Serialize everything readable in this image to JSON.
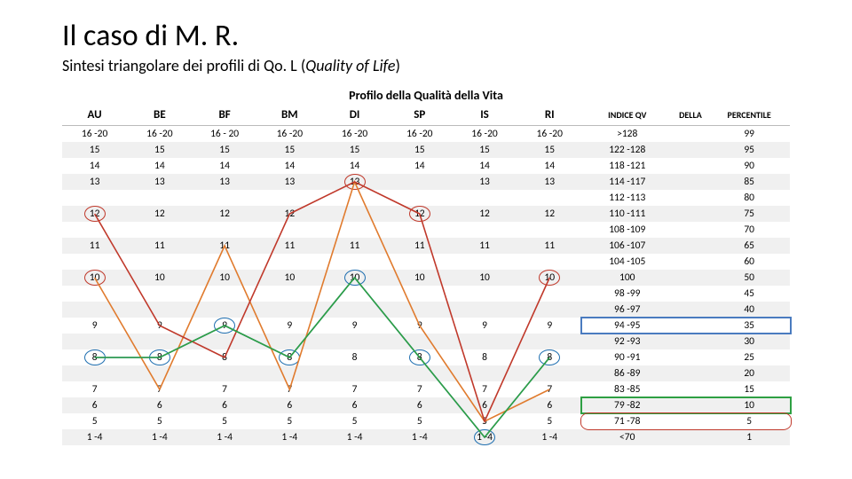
{
  "title": "Il caso di M. R.",
  "subtitle_pre": "Sintesi triangolare dei profili di Qo. L (",
  "subtitle_ital": "Quality of Life",
  "subtitle_post": ")",
  "chart_title": "Profilo della Qualità della Vita",
  "colors": {
    "red": "#c0392b",
    "blue": "#1f6fb0",
    "orange": "#e07b2e",
    "green": "#2ea043"
  },
  "columns_main": [
    "AU",
    "BE",
    "BF",
    "BM",
    "DI",
    "SP",
    "IS",
    "RI"
  ],
  "columns_extra": [
    "INDICE QV",
    "DELLA",
    "PERCENTILE"
  ],
  "row_labels": [
    "16 -20",
    "15",
    "14",
    "13",
    "12",
    "11",
    "10",
    "9",
    "8",
    "7",
    "6",
    "5",
    "1 -4"
  ],
  "grid": [
    [
      "16 -20",
      "16 -20",
      "16 - 20",
      "16 -20",
      "16 -20",
      "16 -20",
      "16 -20",
      "16 -20"
    ],
    [
      "15",
      "15",
      "15",
      "15",
      "15",
      "15",
      "15",
      "15"
    ],
    [
      "14",
      "14",
      "14",
      "14",
      "14",
      "14",
      "14",
      "14"
    ],
    [
      "13",
      "13",
      "13",
      "13",
      "13",
      null,
      "13",
      "13"
    ],
    [
      "12",
      "12",
      "12",
      "12",
      null,
      "12",
      "12",
      "12"
    ],
    [
      "11",
      "11",
      "11",
      "11",
      "11",
      "11",
      "11",
      "11"
    ],
    [
      "10",
      "10",
      "10",
      "10",
      "10",
      "10",
      "10",
      "10"
    ],
    [
      "9",
      "9",
      "9",
      "9",
      "9",
      "9",
      "9",
      "9"
    ],
    [
      "8",
      "8",
      "8",
      "8",
      "8",
      "8",
      "8",
      "8"
    ],
    [
      "7",
      "7",
      "7",
      "7",
      "7",
      "7",
      "7",
      "7"
    ],
    [
      "6",
      "6",
      "6",
      "6",
      "6",
      "6",
      "6",
      "6"
    ],
    [
      "5",
      "5",
      "5",
      "5",
      "5",
      "5",
      "5",
      "5"
    ],
    [
      "1 -4",
      "1 -4",
      "1 -4",
      "1 -4",
      "1 -4",
      "1 -4",
      "1 -4",
      "1 -4"
    ]
  ],
  "idx_rows": [
    [
      ">128",
      "",
      "99"
    ],
    [
      "122 -128",
      "",
      "95"
    ],
    [
      "118 -121",
      "",
      "90"
    ],
    [
      "114 -117",
      "",
      "85"
    ],
    [
      "112 -113",
      "",
      "80"
    ],
    [
      "110 -111",
      "",
      "75"
    ],
    [
      "108 -109",
      "",
      "70"
    ],
    [
      "106 -107",
      "",
      "65"
    ],
    [
      "104 -105",
      "",
      "60"
    ],
    [
      "100",
      "",
      "50"
    ],
    [
      "98 -99",
      "",
      "45"
    ],
    [
      "96 -97",
      "",
      "40"
    ],
    [
      "94 -95",
      "",
      "35"
    ],
    [
      "92 -93",
      "",
      "30"
    ],
    [
      "90 -91",
      "",
      "25"
    ],
    [
      "86 -89",
      "",
      "20"
    ],
    [
      "83 -85",
      "",
      "15"
    ],
    [
      "79 -82",
      "",
      "10"
    ],
    [
      "71 -78",
      "",
      "5"
    ],
    [
      "<70",
      "",
      "1"
    ]
  ],
  "red_circles": [
    [
      4,
      0
    ],
    [
      6,
      0
    ],
    [
      3,
      4
    ],
    [
      4,
      5
    ],
    [
      6,
      7
    ]
  ],
  "blue_circles": [
    [
      8,
      0
    ],
    [
      8,
      1
    ],
    [
      7,
      2
    ],
    [
      8,
      3
    ],
    [
      6,
      4
    ],
    [
      8,
      5
    ],
    [
      12,
      6
    ],
    [
      8,
      7
    ]
  ],
  "series": {
    "blue": {
      "color": "#1f6fb0",
      "width": 1.6,
      "points": [
        [
          0,
          8
        ],
        [
          1,
          8
        ],
        [
          2,
          7
        ],
        [
          3,
          8
        ],
        [
          4,
          6
        ],
        [
          5,
          8
        ],
        [
          6,
          12
        ],
        [
          7,
          8
        ]
      ]
    },
    "orange": {
      "color": "#e07b2e",
      "width": 1.6,
      "points": [
        [
          0,
          6
        ],
        [
          1,
          9
        ],
        [
          2,
          5
        ],
        [
          3,
          9
        ],
        [
          4,
          3
        ],
        [
          5,
          7
        ],
        [
          6,
          11
        ],
        [
          7,
          9
        ]
      ]
    },
    "red": {
      "color": "#c0392b",
      "width": 1.6,
      "points": [
        [
          0,
          4
        ],
        [
          1,
          7
        ],
        [
          2,
          8
        ],
        [
          3,
          4
        ],
        [
          4,
          3
        ],
        [
          5,
          4
        ],
        [
          6,
          11
        ],
        [
          7,
          6
        ]
      ]
    },
    "green": {
      "color": "#2ea043",
      "width": 1.6,
      "points": [
        [
          0,
          8
        ],
        [
          1,
          8
        ],
        [
          2,
          7
        ],
        [
          3,
          8
        ],
        [
          4,
          6
        ],
        [
          5,
          8
        ],
        [
          6,
          12
        ],
        [
          7,
          8
        ]
      ]
    }
  },
  "idx_highlight_blue_row": 12,
  "idx_highlight_green_row": 17,
  "idx_highlight_red_row": 18
}
